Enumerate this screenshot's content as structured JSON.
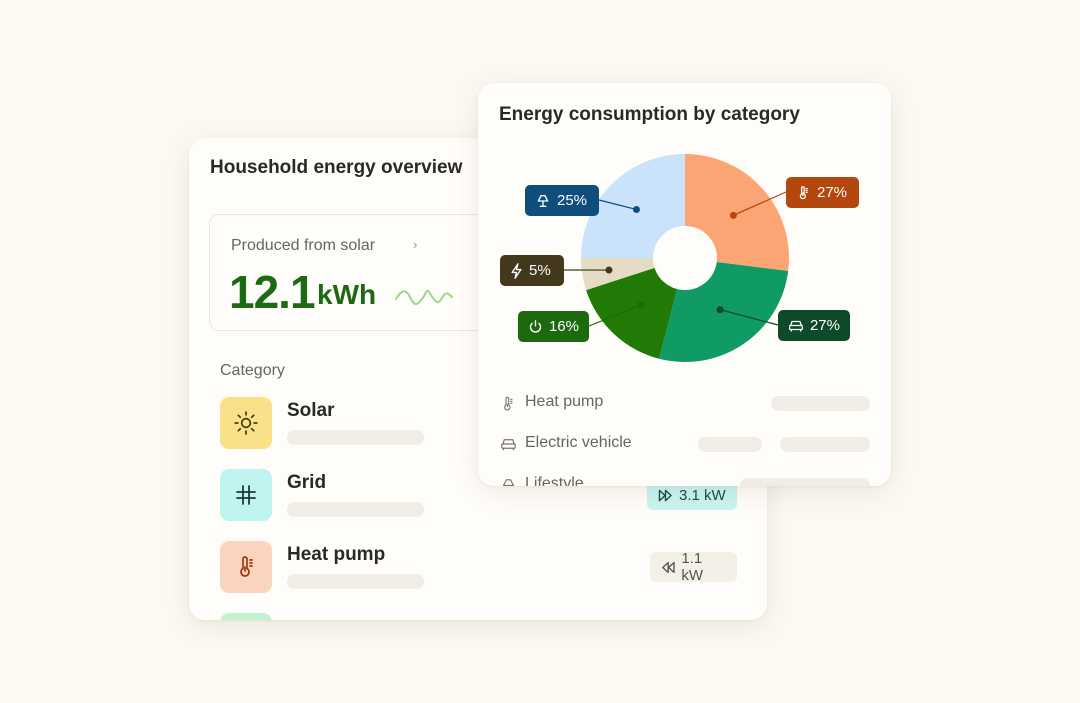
{
  "overview": {
    "title": "Household energy overview",
    "solar": {
      "label": "Produced from solar",
      "value": "12.1",
      "unit": "kWh",
      "chevron": "›"
    },
    "category_heading": "Category",
    "categories": [
      {
        "name": "Solar",
        "icon": "sun-icon",
        "color": "#fbe08a"
      },
      {
        "name": "Grid",
        "icon": "grid-icon",
        "color": "#bff4f0",
        "rate": "3.1 kW",
        "rate_icon": "play-forward-icon",
        "rate_color": "#c9f4f0"
      },
      {
        "name": "Heat pump",
        "icon": "thermometer-icon",
        "color": "#fbd4c0",
        "rate": "1.1 kW",
        "rate_icon": "play-back-icon",
        "rate_color": "#f3f0e8"
      }
    ]
  },
  "chart_card": {
    "title": "Energy consumption by category",
    "legend": [
      {
        "name": "Heat pump",
        "icon": "thermometer-icon"
      },
      {
        "name": "Electric vehicle",
        "icon": "car-icon"
      },
      {
        "name": "Lifestyle",
        "icon": "lamp-icon"
      }
    ]
  },
  "chart_data": {
    "type": "pie",
    "title": "Energy consumption by category",
    "slices": [
      {
        "label": "27%",
        "value": 27,
        "icon": "thermometer-icon",
        "color": "#fca574",
        "tag_color": "#b3470d"
      },
      {
        "label": "27%",
        "value": 27,
        "icon": "car-icon",
        "color": "#109a64",
        "tag_color": "#0d4a2a"
      },
      {
        "label": "16%",
        "value": 16,
        "icon": "power-icon",
        "color": "#207a05",
        "tag_color": "#1d6a0e"
      },
      {
        "label": "5%",
        "value": 5,
        "icon": "bolt-icon",
        "color": "#e4dcc4",
        "tag_color": "#44381c"
      },
      {
        "label": "25%",
        "value": 25,
        "icon": "lamp-icon",
        "color": "#cbe3fa",
        "tag_color": "#0f4d7d"
      }
    ]
  }
}
